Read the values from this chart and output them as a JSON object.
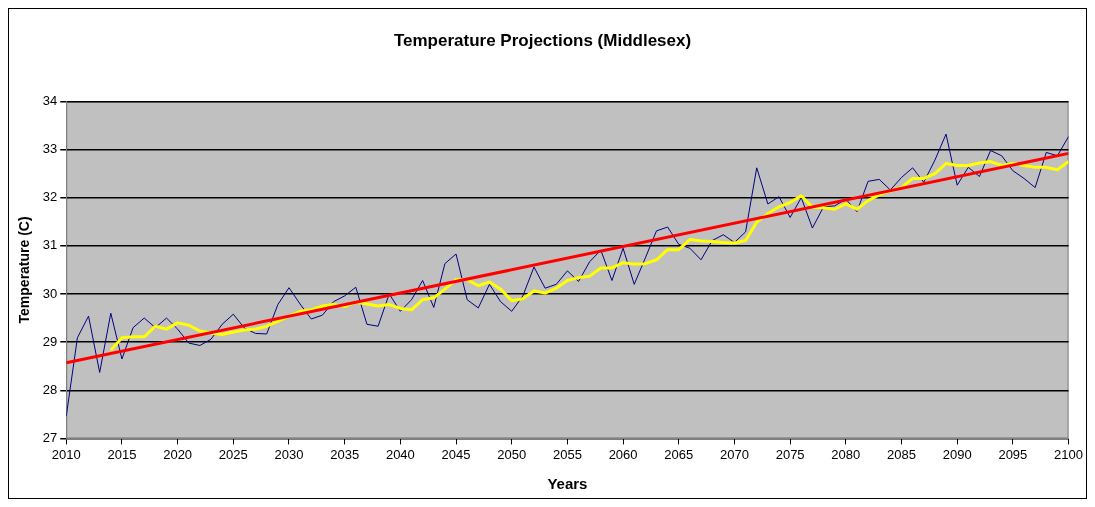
{
  "chart_data": {
    "type": "line",
    "title": "Temperature Projections (Middlesex)",
    "xlabel": "Years",
    "ylabel": "Temperature (C)",
    "x": [
      2010,
      2011,
      2012,
      2013,
      2014,
      2015,
      2016,
      2017,
      2018,
      2019,
      2020,
      2021,
      2022,
      2023,
      2024,
      2025,
      2026,
      2027,
      2028,
      2029,
      2030,
      2031,
      2032,
      2033,
      2034,
      2035,
      2036,
      2037,
      2038,
      2039,
      2040,
      2041,
      2042,
      2043,
      2044,
      2045,
      2046,
      2047,
      2048,
      2049,
      2050,
      2051,
      2052,
      2053,
      2054,
      2055,
      2056,
      2057,
      2058,
      2059,
      2060,
      2061,
      2062,
      2063,
      2064,
      2065,
      2066,
      2067,
      2068,
      2069,
      2070,
      2071,
      2072,
      2073,
      2074,
      2075,
      2076,
      2077,
      2078,
      2079,
      2080,
      2081,
      2082,
      2083,
      2084,
      2085,
      2086,
      2087,
      2088,
      2089,
      2090,
      2091,
      2092,
      2093,
      2094,
      2095,
      2096,
      2097,
      2098,
      2099,
      2100
    ],
    "series": [
      {
        "color": "#000080",
        "values": [
          27.46,
          29.09,
          29.54,
          28.37,
          29.6,
          28.65,
          29.3,
          29.5,
          29.3,
          29.5,
          29.27,
          28.98,
          28.93,
          29.06,
          29.37,
          29.58,
          29.29,
          29.18,
          29.17,
          29.78,
          30.13,
          29.79,
          29.48,
          29.56,
          29.84,
          29.96,
          30.14,
          29.37,
          29.33,
          30.0,
          29.64,
          29.88,
          30.28,
          29.72,
          30.63,
          30.83,
          29.88,
          29.71,
          30.2,
          29.84,
          29.64,
          29.96,
          30.56,
          30.12,
          30.2,
          30.48,
          30.26,
          30.67,
          30.91,
          30.28,
          30.95,
          30.2,
          30.75,
          31.31,
          31.39,
          31.03,
          30.95,
          30.71,
          31.11,
          31.23,
          31.07,
          31.29,
          32.62,
          31.87,
          32.02,
          31.59,
          32.0,
          31.37,
          31.81,
          31.83,
          31.97,
          31.71,
          32.34,
          32.38,
          32.16,
          32.42,
          32.62,
          32.32,
          32.78,
          33.32,
          32.26,
          32.63,
          32.44,
          32.98,
          32.87,
          32.56,
          32.4,
          32.21,
          32.94,
          32.87,
          33.27
        ]
      },
      {
        "color": "#ffff00",
        "values": [
          null,
          null,
          null,
          null,
          28.83,
          29.09,
          29.11,
          29.11,
          29.33,
          29.27,
          29.4,
          29.35,
          29.23,
          29.19,
          29.16,
          29.21,
          29.25,
          29.27,
          29.33,
          29.43,
          29.54,
          29.64,
          29.67,
          29.75,
          29.78,
          29.74,
          29.83,
          29.79,
          29.75,
          29.78,
          29.7,
          29.67,
          29.88,
          29.92,
          30.1,
          30.3,
          30.3,
          30.17,
          30.25,
          30.1,
          29.86,
          29.9,
          30.06,
          30.02,
          30.12,
          30.28,
          30.34,
          30.37,
          30.54,
          30.54,
          30.65,
          30.62,
          30.63,
          30.71,
          30.92,
          30.92,
          31.13,
          31.1,
          31.09,
          31.07,
          31.06,
          31.11,
          31.49,
          31.67,
          31.81,
          31.9,
          32.04,
          31.8,
          31.79,
          31.76,
          31.87,
          31.76,
          31.94,
          32.06,
          32.14,
          32.21,
          32.4,
          32.4,
          32.5,
          32.71,
          32.67,
          32.67,
          32.72,
          32.75,
          32.67,
          32.71,
          32.67,
          32.63,
          32.63,
          32.58,
          32.75
        ]
      },
      {
        "type": "line",
        "color": "#ff0000",
        "x": [
          2010,
          2100
        ],
        "values": [
          28.57,
          32.92
        ]
      }
    ],
    "xlim": [
      2010,
      2100
    ],
    "xticks": [
      2010,
      2015,
      2020,
      2025,
      2030,
      2035,
      2040,
      2045,
      2050,
      2055,
      2060,
      2065,
      2070,
      2075,
      2080,
      2085,
      2090,
      2095,
      2100
    ],
    "ylim": [
      27,
      34
    ],
    "yticks": [
      27,
      28,
      29,
      30,
      31,
      32,
      33,
      34
    ],
    "grid": "y",
    "legend": false,
    "marker": "none",
    "line_style": "solid"
  }
}
